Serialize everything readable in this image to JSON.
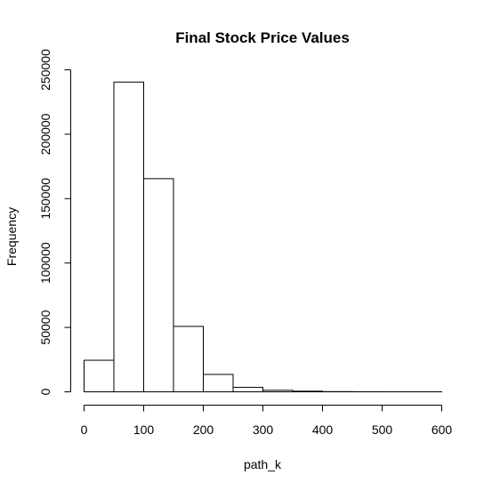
{
  "chart_data": {
    "type": "bar",
    "title": "Final Stock Price Values",
    "xlabel": "path_k",
    "ylabel": "Frequency",
    "bin_edges": [
      0,
      50,
      100,
      150,
      200,
      250,
      300,
      350,
      400,
      450,
      500,
      550,
      600
    ],
    "values": [
      24500,
      240500,
      165500,
      50800,
      13500,
      3500,
      1200,
      500,
      150,
      60,
      20,
      10
    ],
    "xlim": [
      0,
      600
    ],
    "ylim": [
      0,
      250000
    ],
    "xticks": [
      0,
      100,
      200,
      300,
      400,
      500,
      600
    ],
    "yticks": [
      0,
      50000,
      100000,
      150000,
      200000,
      250000
    ],
    "xtick_labels": [
      "0",
      "100",
      "200",
      "300",
      "400",
      "500",
      "600"
    ],
    "ytick_labels": [
      "0",
      "50000",
      "100000",
      "150000",
      "200000",
      "250000"
    ],
    "grid": false,
    "bar_fill": "#ffffff",
    "bar_stroke": "#000000"
  }
}
